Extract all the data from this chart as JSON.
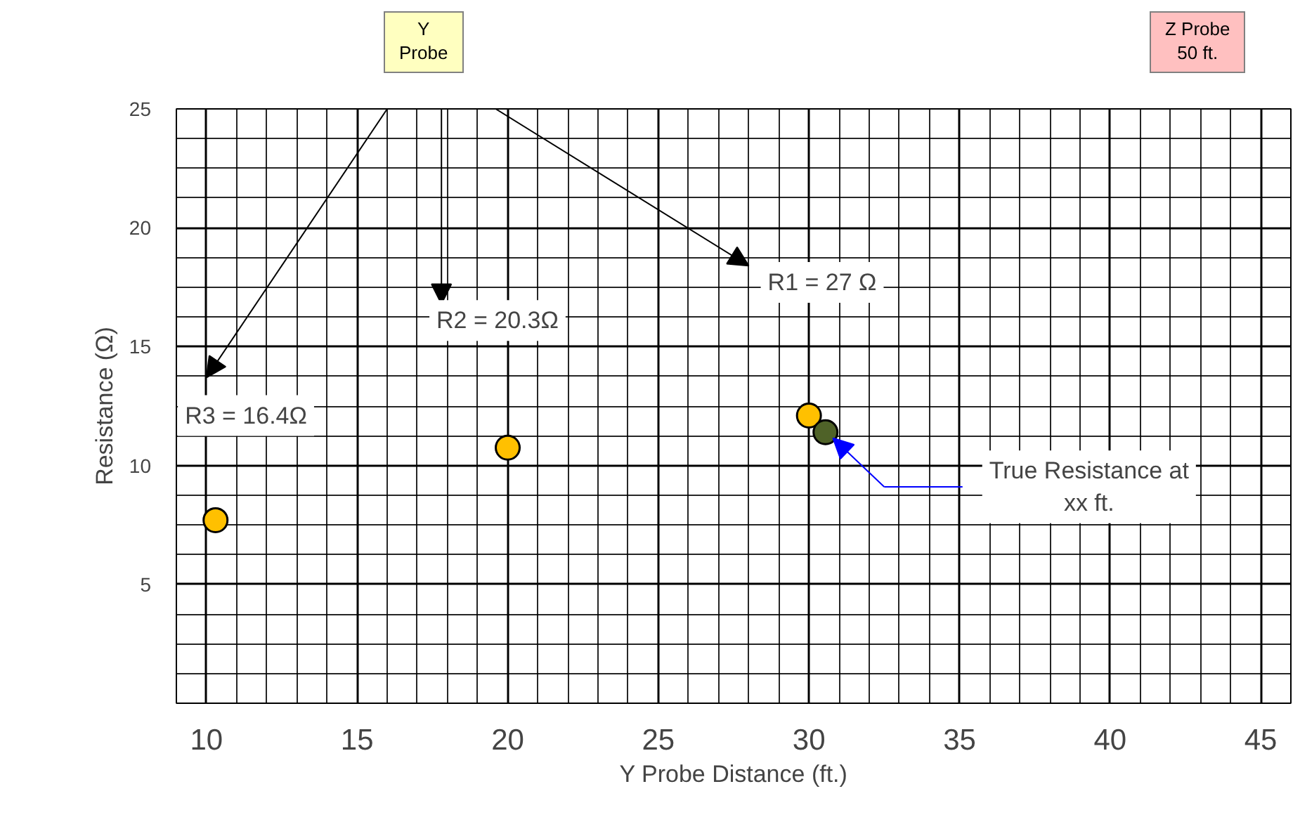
{
  "chart_data": {
    "type": "scatter",
    "xlabel": "Y Probe Distance (ft.)",
    "ylabel": "Resistance (Ω)",
    "xlim": [
      9,
      46
    ],
    "ylim": [
      0,
      25
    ],
    "xticks": [
      10,
      15,
      20,
      25,
      30,
      35,
      40,
      45
    ],
    "yticks": [
      5,
      10,
      15,
      20,
      25
    ],
    "grid": true,
    "marker": "circle",
    "series": [
      {
        "color": "#ffc000",
        "x": [
          10.3,
          20,
          30
        ],
        "values": [
          7.7,
          10.75,
          12.1
        ]
      },
      {
        "color": "#4f6228",
        "x": [
          30.55
        ],
        "values": [
          11.4
        ]
      }
    ],
    "annotations": [
      "Y\nProbe",
      "Z Probe\n50 ft.",
      "R3 = 16.4Ω",
      "R2 = 20.3Ω",
      "R1 = 27 Ω",
      "True Resistance at\nxx ft."
    ]
  }
}
